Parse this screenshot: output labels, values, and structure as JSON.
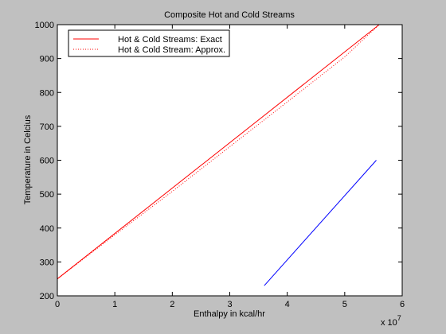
{
  "figure": {
    "background": "#c0c0c0",
    "axes_background": "#ffffff"
  },
  "chart_data": {
    "type": "line",
    "title": "Composite Hot and Cold Streams",
    "xlabel": "Enthalpy in kcal/hr",
    "ylabel": "Temperature in Celcius",
    "x_multiplier": "x 10",
    "x_multiplier_exponent": "7",
    "xlim": [
      0,
      6
    ],
    "ylim": [
      200,
      1000
    ],
    "xticks": [
      0,
      1,
      2,
      3,
      4,
      5,
      6
    ],
    "yticks": [
      200,
      300,
      400,
      500,
      600,
      700,
      800,
      900,
      1000
    ],
    "grid": false,
    "legend_position": "top-left",
    "legend": [
      {
        "label": "Hot & Cold Streams: Exact",
        "color": "#ff0000",
        "style": "solid"
      },
      {
        "label": "Hot & Cold Stream: Approx.",
        "color": "#ff0000",
        "style": "dotted"
      }
    ],
    "series": [
      {
        "name": "Hot & Cold Streams: Exact",
        "color": "#ff0000",
        "style": "solid",
        "x": [
          0,
          5.6
        ],
        "y": [
          250,
          1000
        ]
      },
      {
        "name": "Hot & Cold Stream: Approx.",
        "color": "#ff0000",
        "style": "dotted",
        "x": [
          0,
          1,
          2,
          3,
          4,
          5,
          5.6
        ],
        "y": [
          250,
          380,
          508,
          640,
          772,
          905,
          1000
        ]
      },
      {
        "color": "#0000ff",
        "style": "solid",
        "x": [
          3.6,
          5.55
        ],
        "y": [
          230,
          600
        ]
      }
    ]
  }
}
